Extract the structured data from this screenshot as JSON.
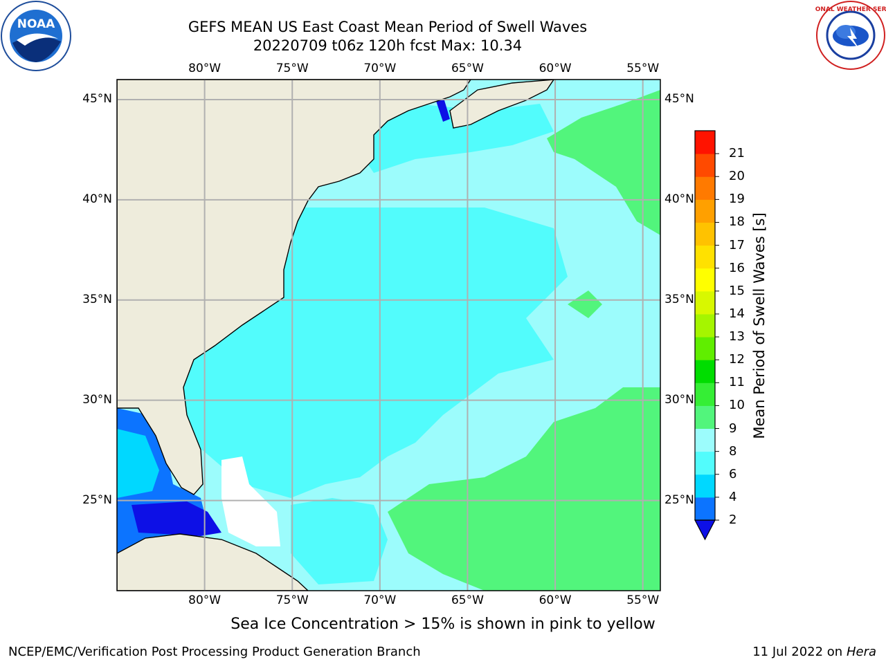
{
  "title": {
    "line1": "GEFS MEAN US East Coast Mean Period of Swell Waves",
    "line2": "20220709 t06z 120h fcst   Max: 10.34"
  },
  "logos": {
    "left": {
      "icon": "noaa-logo",
      "text": "NOAA"
    },
    "right": {
      "icon": "nws-logo",
      "text": "NATIONAL WEATHER SERVICE"
    }
  },
  "map": {
    "projection": "cylindrical",
    "lon_range": [
      -85,
      -54
    ],
    "lat_range": [
      20.5,
      46
    ],
    "lon_ticks": [
      "80°W",
      "75°W",
      "70°W",
      "65°W",
      "60°W",
      "55°W"
    ],
    "lat_ticks": [
      "45°N",
      "40°N",
      "35°N",
      "30°N",
      "25°N"
    ],
    "land_color": "#eeecdc",
    "grid": true,
    "grid_color": "#b0b0b0"
  },
  "colorbar": {
    "label": "Mean Period of Swell Waves [s]",
    "ticks": [
      "2",
      "4",
      "6",
      "8",
      "9",
      "10",
      "11",
      "12",
      "13",
      "14",
      "15",
      "16",
      "17",
      "18",
      "19",
      "20",
      "21"
    ],
    "colors": [
      "#0c74ff",
      "#00d8ff",
      "#52fcfc",
      "#9cfcfc",
      "#52f57c",
      "#35ee35",
      "#00dd00",
      "#60ee00",
      "#a5f500",
      "#d8f800",
      "#ffff00",
      "#ffe100",
      "#ffc200",
      "#ffa000",
      "#ff7a00",
      "#ff4a00",
      "#ff1300"
    ],
    "under_color": "#0d10e6"
  },
  "caption": "Sea Ice Concentration > 15% is shown in pink to yellow",
  "footer": {
    "left": "NCEP/EMC/Verification Post Processing Product Generation Branch",
    "right_date": "11 Jul 2022 on ",
    "right_host": "Hera"
  }
}
